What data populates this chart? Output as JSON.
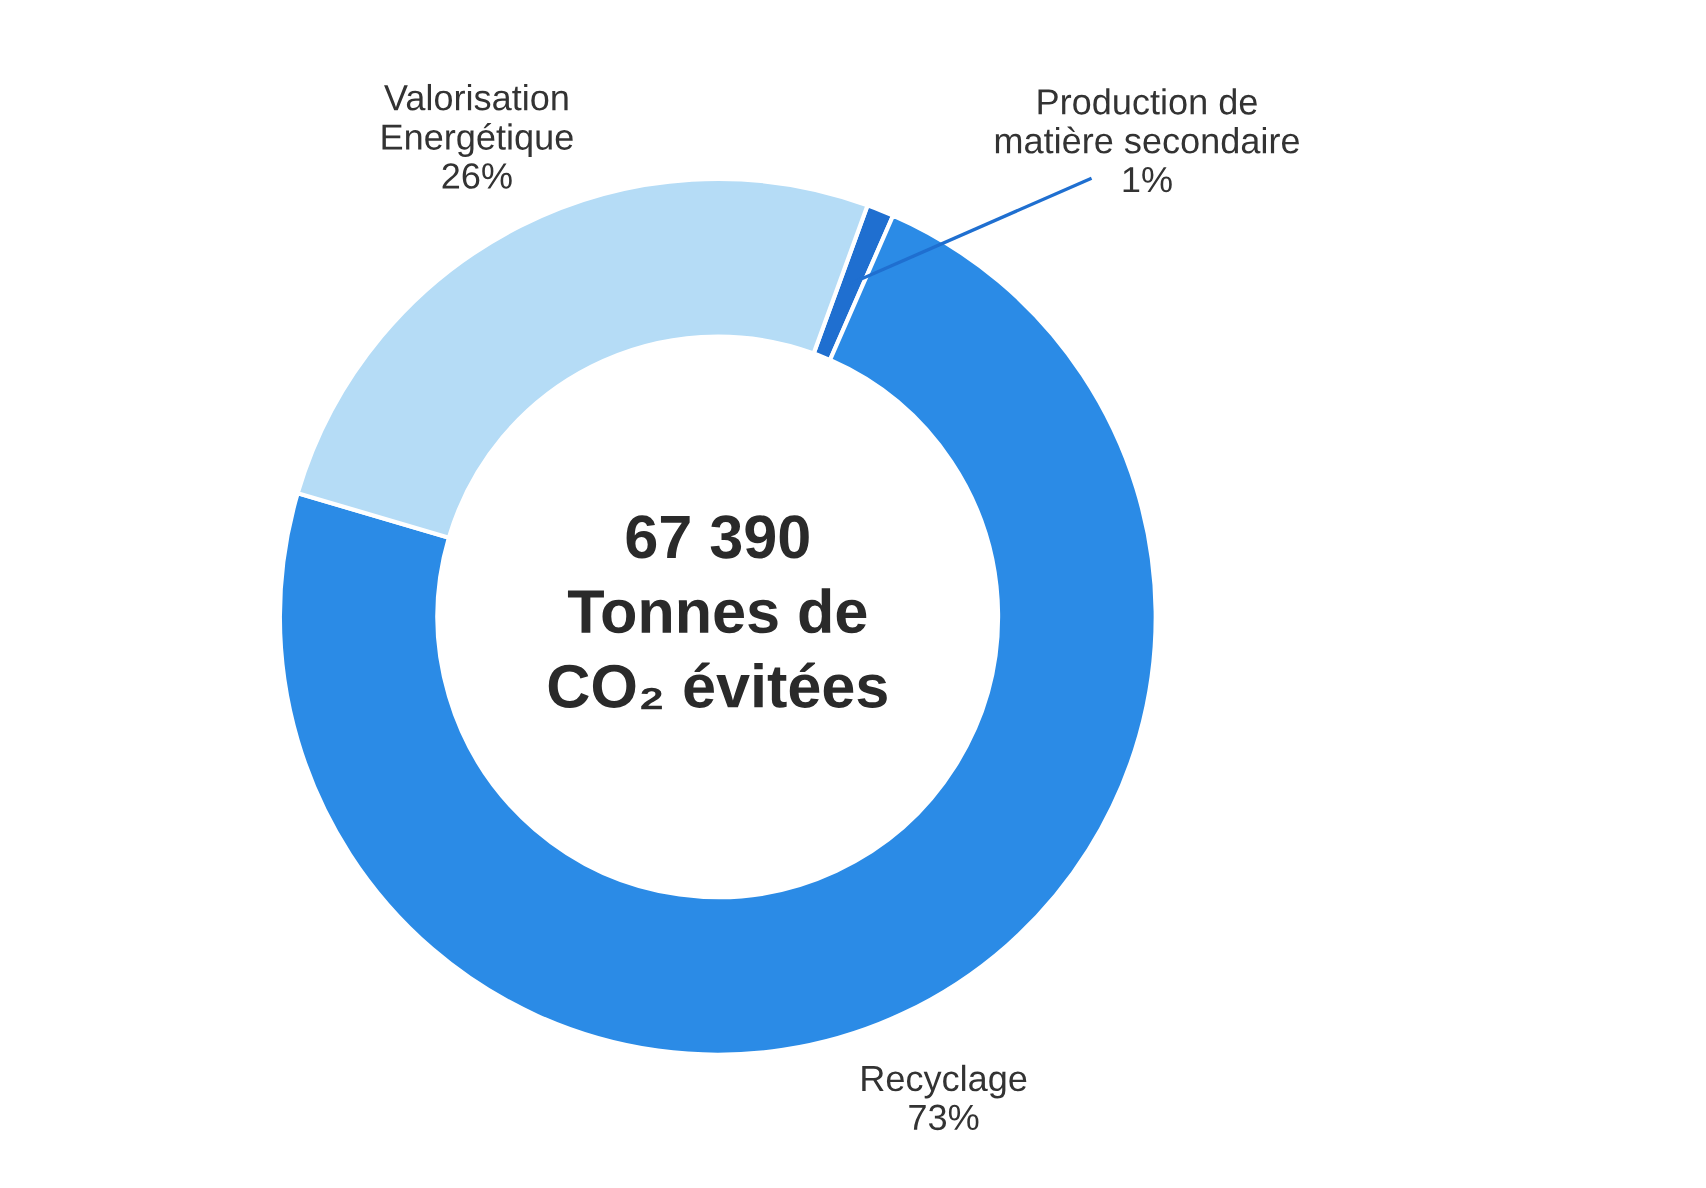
{
  "chart_data": {
    "type": "donut",
    "categories": [
      "Production de\nmatière secondaire",
      "Recyclage",
      "Valorisation\nEnergétique"
    ],
    "values": [
      1,
      73,
      26
    ],
    "value_labels": [
      "1%",
      "73%",
      "26%"
    ],
    "colors": [
      "#1f6fd0",
      "#2b8be6",
      "#b5dcf6"
    ],
    "annotations": [
      "67 390\nTonnes de\nCO₂ évitées"
    ],
    "legend": false
  }
}
